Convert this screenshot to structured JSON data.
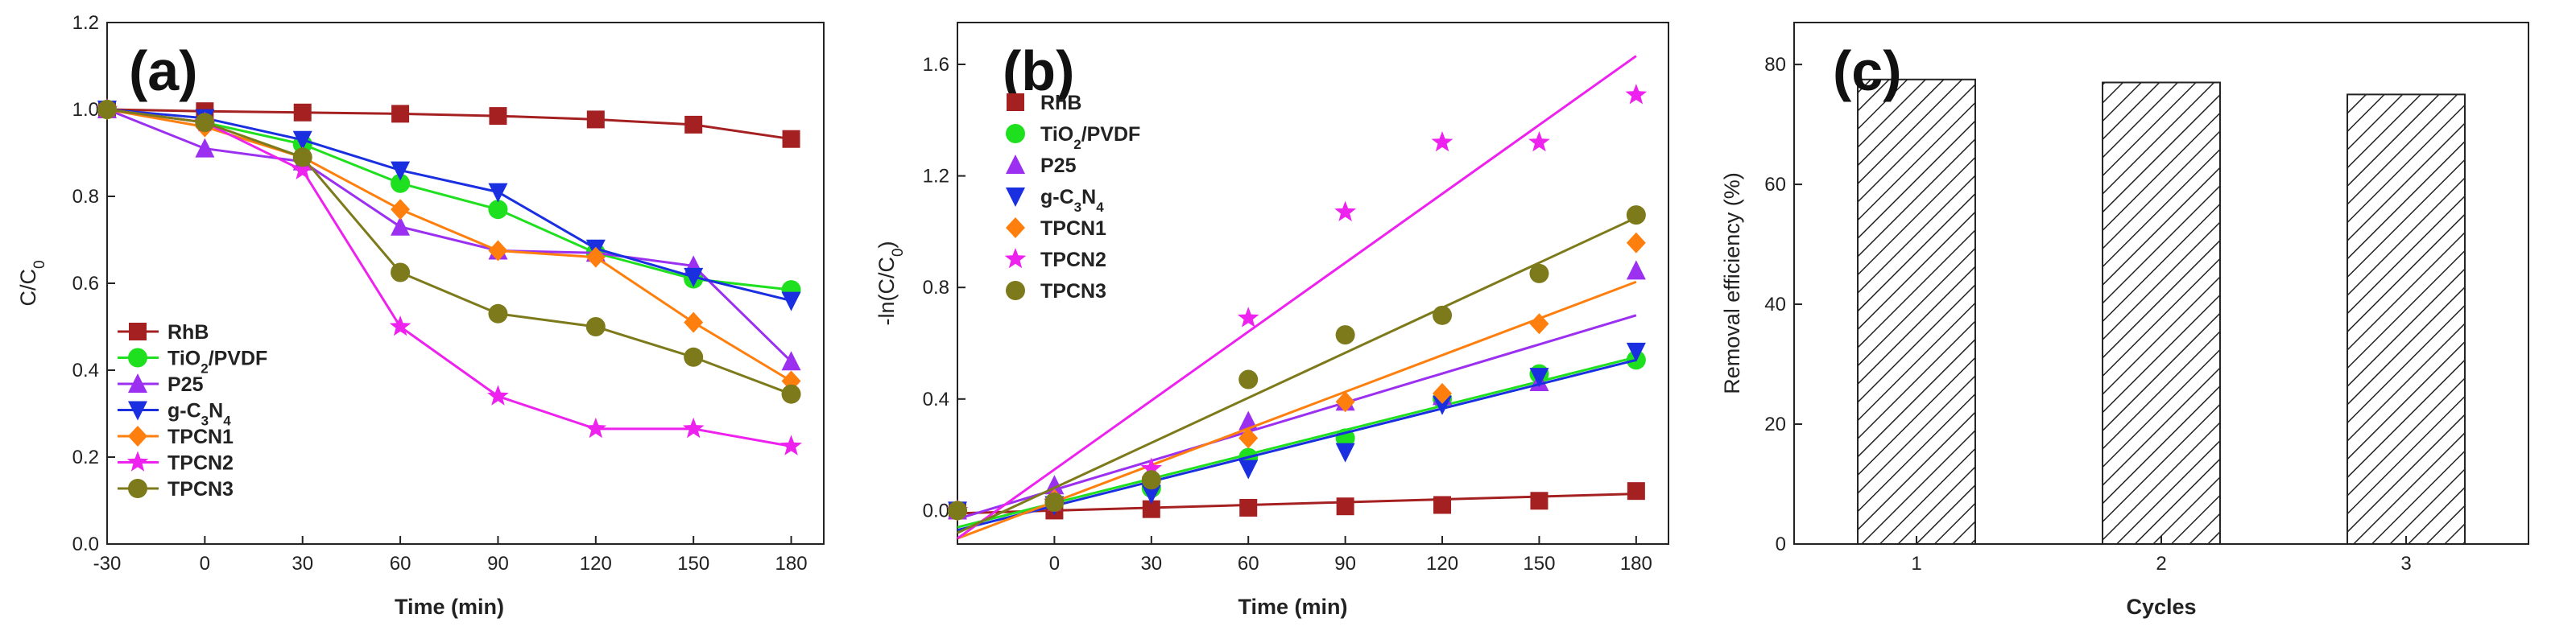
{
  "colors": {
    "RhB": "#a52121",
    "TiO2/PVDF": "#1fe01f",
    "P25": "#9b30f0",
    "g-C3N4": "#1a2fe0",
    "TPCN1": "#ff7f0e",
    "TPCN2": "#ee22ee",
    "TPCN3": "#7c7a1a"
  },
  "chart_data": [
    {
      "type": "line",
      "panel_label": "(a)",
      "xlabel": "Time (min)",
      "ylabel_main": "C/C",
      "ylabel_sub": "0",
      "xlim": [
        -30,
        190
      ],
      "ylim": [
        0.0,
        1.2
      ],
      "xticks": [
        -30,
        0,
        30,
        60,
        90,
        120,
        150,
        180
      ],
      "yticks": [
        "0.0",
        "0.2",
        "0.4",
        "0.6",
        "0.8",
        "1.0",
        "1.2"
      ],
      "legend_position": "bottom-left",
      "x": [
        -30,
        0,
        30,
        60,
        90,
        120,
        150,
        180
      ],
      "series": [
        {
          "name": "RhB",
          "label_main": "RhB",
          "label_sub": "",
          "label_tail": "",
          "marker": "square",
          "values": [
            1.0,
            0.996,
            0.993,
            0.99,
            0.985,
            0.977,
            0.965,
            0.932
          ]
        },
        {
          "name": "TiO2/PVDF",
          "label_main": "TiO",
          "label_sub": "2",
          "label_tail": "/PVDF",
          "marker": "circle",
          "values": [
            1.0,
            0.97,
            0.92,
            0.83,
            0.77,
            0.67,
            0.61,
            0.585
          ]
        },
        {
          "name": "P25",
          "label_main": "P25",
          "label_sub": "",
          "label_tail": "",
          "marker": "triangle-up",
          "values": [
            1.0,
            0.91,
            0.88,
            0.73,
            0.675,
            0.67,
            0.64,
            0.42
          ]
        },
        {
          "name": "g-C3N4",
          "label_main": "g-C",
          "label_sub": "3",
          "label_tail": "N",
          "label_sub2": "4",
          "marker": "triangle-down",
          "values": [
            1.0,
            0.98,
            0.93,
            0.86,
            0.81,
            0.68,
            0.615,
            0.56
          ]
        },
        {
          "name": "TPCN1",
          "label_main": "TPCN1",
          "label_sub": "",
          "label_tail": "",
          "marker": "diamond",
          "values": [
            1.0,
            0.96,
            0.89,
            0.77,
            0.675,
            0.66,
            0.51,
            0.375
          ]
        },
        {
          "name": "TPCN2",
          "label_main": "TPCN2",
          "label_sub": "",
          "label_tail": "",
          "marker": "star",
          "values": [
            1.0,
            0.97,
            0.86,
            0.5,
            0.34,
            0.265,
            0.265,
            0.225
          ]
        },
        {
          "name": "TPCN3",
          "label_main": "TPCN3",
          "label_sub": "",
          "label_tail": "",
          "marker": "circle",
          "values": [
            1.0,
            0.97,
            0.89,
            0.625,
            0.53,
            0.5,
            0.43,
            0.345
          ]
        }
      ]
    },
    {
      "type": "scatter",
      "panel_label": "(b)",
      "xlabel": "Time (min)",
      "ylabel_main": "-ln(C/C",
      "ylabel_sub": "0",
      "ylabel_tail": ")",
      "xlim": [
        -30,
        190
      ],
      "ylim": [
        -0.12,
        1.75
      ],
      "xticks": [
        0,
        30,
        60,
        90,
        120,
        150,
        180
      ],
      "yticks": [
        "0.0",
        "0.4",
        "0.8",
        "1.2",
        "1.6"
      ],
      "legend_position": "top-left",
      "x": [
        -30,
        0,
        30,
        60,
        90,
        120,
        150,
        180
      ],
      "fit_x_range": [
        -30,
        180
      ],
      "series": [
        {
          "name": "RhB",
          "label_main": "RhB",
          "label_sub": "",
          "label_tail": "",
          "marker": "square",
          "values": [
            0.0,
            0.0,
            0.005,
            0.01,
            0.015,
            0.02,
            0.035,
            0.07
          ],
          "fit": [
            -0.01,
            0.06
          ]
        },
        {
          "name": "TiO2/PVDF",
          "label_main": "TiO",
          "label_sub": "2",
          "label_tail": "/PVDF",
          "marker": "circle",
          "values": [
            0.0,
            0.03,
            0.08,
            0.19,
            0.26,
            0.4,
            0.49,
            0.54
          ],
          "fit": [
            -0.06,
            0.55
          ]
        },
        {
          "name": "P25",
          "label_main": "P25",
          "label_sub": "",
          "label_tail": "",
          "marker": "triangle-up",
          "values": [
            0.0,
            0.09,
            0.13,
            0.32,
            0.39,
            0.41,
            0.46,
            0.86
          ],
          "fit": [
            -0.03,
            0.7
          ]
        },
        {
          "name": "g-C3N4",
          "label_main": "g-C",
          "label_sub": "3",
          "label_tail": "N",
          "label_sub2": "4",
          "marker": "triangle-down",
          "values": [
            0.0,
            0.02,
            0.06,
            0.15,
            0.21,
            0.38,
            0.48,
            0.57
          ],
          "fit": [
            -0.07,
            0.54
          ]
        },
        {
          "name": "TPCN1",
          "label_main": "TPCN1",
          "label_sub": "",
          "label_tail": "",
          "marker": "diamond",
          "values": [
            0.0,
            0.04,
            0.12,
            0.26,
            0.39,
            0.42,
            0.67,
            0.96
          ],
          "fit": [
            -0.1,
            0.82
          ]
        },
        {
          "name": "TPCN2",
          "label_main": "TPCN2",
          "label_sub": "",
          "label_tail": "",
          "marker": "star",
          "values": [
            0.0,
            0.03,
            0.15,
            0.69,
            1.07,
            1.32,
            1.32,
            1.49
          ],
          "fit": [
            -0.1,
            1.63
          ]
        },
        {
          "name": "TPCN3",
          "label_main": "TPCN3",
          "label_sub": "",
          "label_tail": "",
          "marker": "circle",
          "values": [
            0.0,
            0.03,
            0.11,
            0.47,
            0.63,
            0.7,
            0.85,
            1.06
          ],
          "fit": [
            -0.08,
            1.05
          ]
        }
      ]
    },
    {
      "type": "bar",
      "panel_label": "(c)",
      "xlabel": "Cycles",
      "ylabel": "Removal efficiency (%)",
      "categories": [
        "1",
        "2",
        "3"
      ],
      "values": [
        77.5,
        77.0,
        75.0
      ],
      "ylim": [
        0,
        87
      ],
      "yticks": [
        "0",
        "20",
        "40",
        "60",
        "80"
      ],
      "bar_fill": "diagonal hatch"
    }
  ]
}
